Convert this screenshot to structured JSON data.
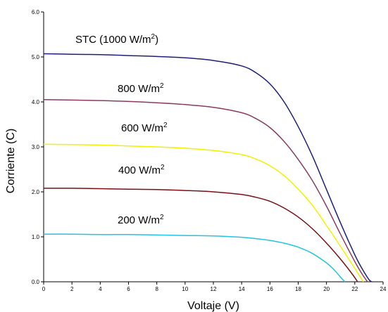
{
  "chart_data": {
    "type": "line",
    "title": "",
    "xlabel": "Voltaje (V)",
    "ylabel": "Corriente (C)",
    "xlim": [
      0,
      24
    ],
    "ylim": [
      0,
      6
    ],
    "x_ticks": [
      "0",
      "2",
      "4",
      "6",
      "8",
      "10",
      "12",
      "14",
      "16",
      "18",
      "20",
      "22",
      "24"
    ],
    "y_ticks": [
      "0.0",
      "1.0",
      "2.0",
      "3.0",
      "4.0",
      "5.0",
      "6.0"
    ],
    "grid": false,
    "legend": "none (series labeled on chart)",
    "series": [
      {
        "name": "STC (1000 W/m2)",
        "label_main": "STC (1000 W/m",
        "label_sup": "2",
        "label_tail": ")",
        "color": "#1f1f7a",
        "x": [
          0,
          2,
          4,
          6,
          8,
          10,
          12,
          14,
          15,
          16,
          17,
          18,
          19,
          20,
          21,
          22,
          22.5,
          23,
          23.2
        ],
        "y": [
          5.07,
          5.06,
          5.05,
          5.03,
          5.01,
          4.98,
          4.92,
          4.8,
          4.65,
          4.4,
          4.0,
          3.45,
          2.8,
          2.05,
          1.3,
          0.6,
          0.3,
          0.05,
          0
        ]
      },
      {
        "name": "800 W/m2",
        "label_main": "800 W/m",
        "label_sup": "2",
        "label_tail": "",
        "color": "#8b3a62",
        "x": [
          0,
          2,
          4,
          6,
          8,
          10,
          12,
          14,
          15,
          16,
          17,
          18,
          19,
          20,
          21,
          22,
          22.5,
          22.9
        ],
        "y": [
          4.05,
          4.04,
          4.03,
          4.01,
          3.98,
          3.94,
          3.88,
          3.76,
          3.63,
          3.43,
          3.12,
          2.72,
          2.25,
          1.68,
          1.05,
          0.45,
          0.18,
          0
        ]
      },
      {
        "name": "600 W/m2",
        "label_main": "600 W/m",
        "label_sup": "2",
        "label_tail": "",
        "color": "#f2f200",
        "x": [
          0,
          2,
          4,
          6,
          8,
          10,
          12,
          14,
          15,
          16,
          17,
          18,
          19,
          20,
          21,
          22,
          22.6
        ],
        "y": [
          3.06,
          3.05,
          3.04,
          3.02,
          3.0,
          2.97,
          2.92,
          2.83,
          2.73,
          2.58,
          2.36,
          2.06,
          1.7,
          1.25,
          0.78,
          0.3,
          0
        ]
      },
      {
        "name": "400 W/m2",
        "label_main": "400 W/m",
        "label_sup": "2",
        "label_tail": "",
        "color": "#7a0f14",
        "x": [
          0,
          2,
          4,
          6,
          8,
          10,
          12,
          14,
          15,
          16,
          17,
          18,
          19,
          20,
          21,
          21.8,
          22.2
        ],
        "y": [
          2.08,
          2.08,
          2.07,
          2.06,
          2.05,
          2.03,
          2.0,
          1.94,
          1.88,
          1.79,
          1.64,
          1.44,
          1.18,
          0.86,
          0.5,
          0.18,
          0
        ]
      },
      {
        "name": "200 W/m2",
        "label_main": "200 W/m",
        "label_sup": "2",
        "label_tail": "",
        "color": "#22c3e6",
        "x": [
          0,
          2,
          4,
          6,
          8,
          10,
          12,
          14,
          15,
          16,
          17,
          18,
          19,
          20,
          20.5,
          21,
          21.3
        ],
        "y": [
          1.06,
          1.06,
          1.05,
          1.05,
          1.04,
          1.03,
          1.02,
          0.99,
          0.96,
          0.92,
          0.86,
          0.77,
          0.63,
          0.42,
          0.28,
          0.1,
          0
        ]
      }
    ]
  }
}
